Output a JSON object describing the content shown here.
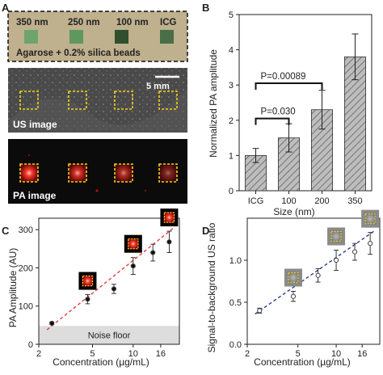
{
  "panels": {
    "A": {
      "letter": "A",
      "photo": {
        "labels": [
          "350 nm",
          "250 nm",
          "100 nm",
          "ICG"
        ],
        "caption": "Agarose + 0.2% silica beads",
        "square_colors": [
          "#6fa46f",
          "#5f985f",
          "#2f4f2f",
          "#486f48"
        ]
      },
      "us": {
        "label": "US image",
        "scale_bar": "5 mm"
      },
      "pa": {
        "label": "PA image",
        "spot_intensity": [
          1.0,
          0.8,
          0.6,
          0.35
        ]
      }
    },
    "B": {
      "letter": "B"
    },
    "C": {
      "letter": "C",
      "band_label": "Noise floor"
    },
    "D": {
      "letter": "D"
    }
  },
  "colors": {
    "bar_fill": "#bdbdbd",
    "bar_hatch": "#555555",
    "fit_c": "#e04040",
    "fit_d": "#2a3d8f",
    "dashed_box": "#f2d21b",
    "noise_band": "#dddddd"
  },
  "chart_data": [
    {
      "panel": "B",
      "type": "bar",
      "categories": [
        "ICG",
        "100",
        "200",
        "350"
      ],
      "values": [
        1.0,
        1.5,
        2.3,
        3.8
      ],
      "errors": [
        0.2,
        0.4,
        0.55,
        0.65
      ],
      "xlabel": "Size (nm)",
      "ylabel": "Normalized PA amplitude",
      "ylim": [
        0,
        5
      ],
      "yticks": [
        0,
        1,
        2,
        3,
        4,
        5
      ],
      "annotations": [
        {
          "text": "P=0.030",
          "from": "100",
          "to": "ICG"
        },
        {
          "text": "P=0.00089",
          "from": "200",
          "to": "ICG"
        }
      ]
    },
    {
      "panel": "C",
      "type": "scatter",
      "scale": "log-x",
      "xlabel": "Concentration (µg/mL)",
      "ylabel": "PA Amplitude (AU)",
      "xlim": [
        2,
        22
      ],
      "ylim": [
        0,
        330
      ],
      "xticks": [
        2,
        5,
        10,
        16
      ],
      "yticks": [
        0,
        100,
        200,
        300
      ],
      "x": [
        2.5,
        4.6,
        7.2,
        10,
        14,
        18.5
      ],
      "y": [
        55,
        118,
        145,
        205,
        240,
        268
      ],
      "errors": [
        3,
        12,
        12,
        22,
        22,
        28
      ],
      "noise_floor": 48,
      "fit": [
        [
          2.3,
          38
        ],
        [
          20,
          305
        ]
      ],
      "marker": "filled",
      "thumbnails": [
        "pa",
        "pa",
        "pa"
      ]
    },
    {
      "panel": "D",
      "type": "scatter",
      "scale": "log-x",
      "xlabel": "Concentration (µg/mL)",
      "ylabel": "Signal-to-background US ratio",
      "xlim": [
        2,
        22
      ],
      "ylim": [
        0,
        1.5
      ],
      "xticks": [
        2,
        5,
        10,
        16
      ],
      "yticks": [
        0.0,
        0.5,
        1.0
      ],
      "x": [
        2.5,
        4.6,
        7.2,
        10,
        14,
        18.5
      ],
      "y": [
        0.4,
        0.57,
        0.82,
        1.0,
        1.1,
        1.2
      ],
      "errors": [
        0.03,
        0.06,
        0.08,
        0.12,
        0.1,
        0.13
      ],
      "fit": [
        [
          2.3,
          0.36
        ],
        [
          20,
          1.35
        ]
      ],
      "marker": "open",
      "thumbnails": [
        "us",
        "us",
        "us"
      ]
    }
  ]
}
